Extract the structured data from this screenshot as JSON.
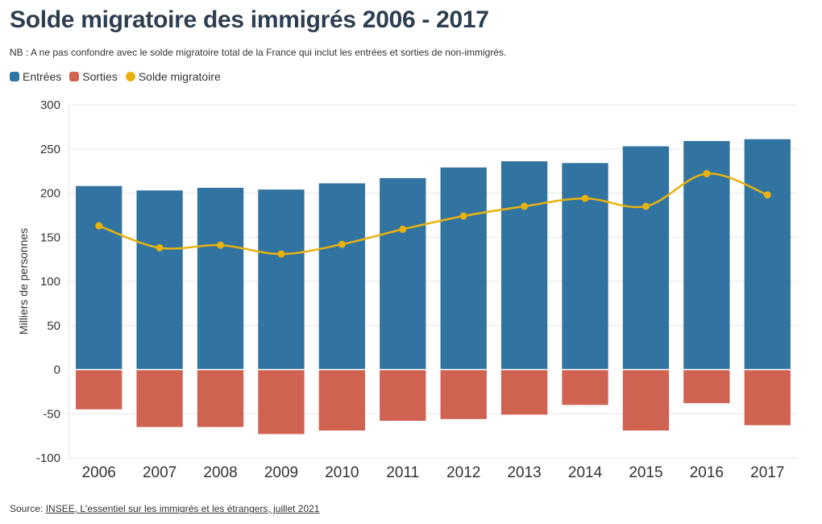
{
  "title": "Solde migratoire des immigrés 2006 - 2017",
  "subtitle": "NB : A ne pas confondre avec le solde migratoire total de la France qui inclut les entrées et sorties de non-immigrés.",
  "legend": [
    {
      "label": "Entrées",
      "color": "#3274a1"
    },
    {
      "label": "Sorties",
      "color": "#d06252"
    },
    {
      "label": "Solde migratoire",
      "color": "#e8b20e"
    }
  ],
  "source": {
    "prefix": "Source: ",
    "link_text": "INSEE, L'essentiel sur les immigrés et les étrangers, juillet 2021"
  },
  "chart_data": {
    "type": "bar",
    "categories": [
      "2006",
      "2007",
      "2008",
      "2009",
      "2010",
      "2011",
      "2012",
      "2013",
      "2014",
      "2015",
      "2016",
      "2017"
    ],
    "series": [
      {
        "name": "Entrées",
        "type": "bar",
        "color": "#3274a1",
        "values": [
          208,
          203,
          206,
          204,
          211,
          217,
          229,
          236,
          234,
          253,
          259,
          261
        ]
      },
      {
        "name": "Sorties",
        "type": "bar",
        "color": "#d06252",
        "values": [
          -45,
          -65,
          -65,
          -73,
          -69,
          -58,
          -56,
          -51,
          -40,
          -69,
          -38,
          -63
        ]
      },
      {
        "name": "Solde migratoire",
        "type": "line",
        "color": "#e8b20e",
        "values": [
          163,
          138,
          141,
          131,
          142,
          159,
          174,
          185,
          194,
          185,
          222,
          198
        ]
      }
    ],
    "ylabel": "Milliers de personnes",
    "xlabel": "",
    "ylim": [
      -100,
      300
    ],
    "yticks": [
      -100,
      -50,
      0,
      50,
      100,
      150,
      200,
      250,
      300
    ],
    "grid": true,
    "legend_position": "top-left"
  }
}
